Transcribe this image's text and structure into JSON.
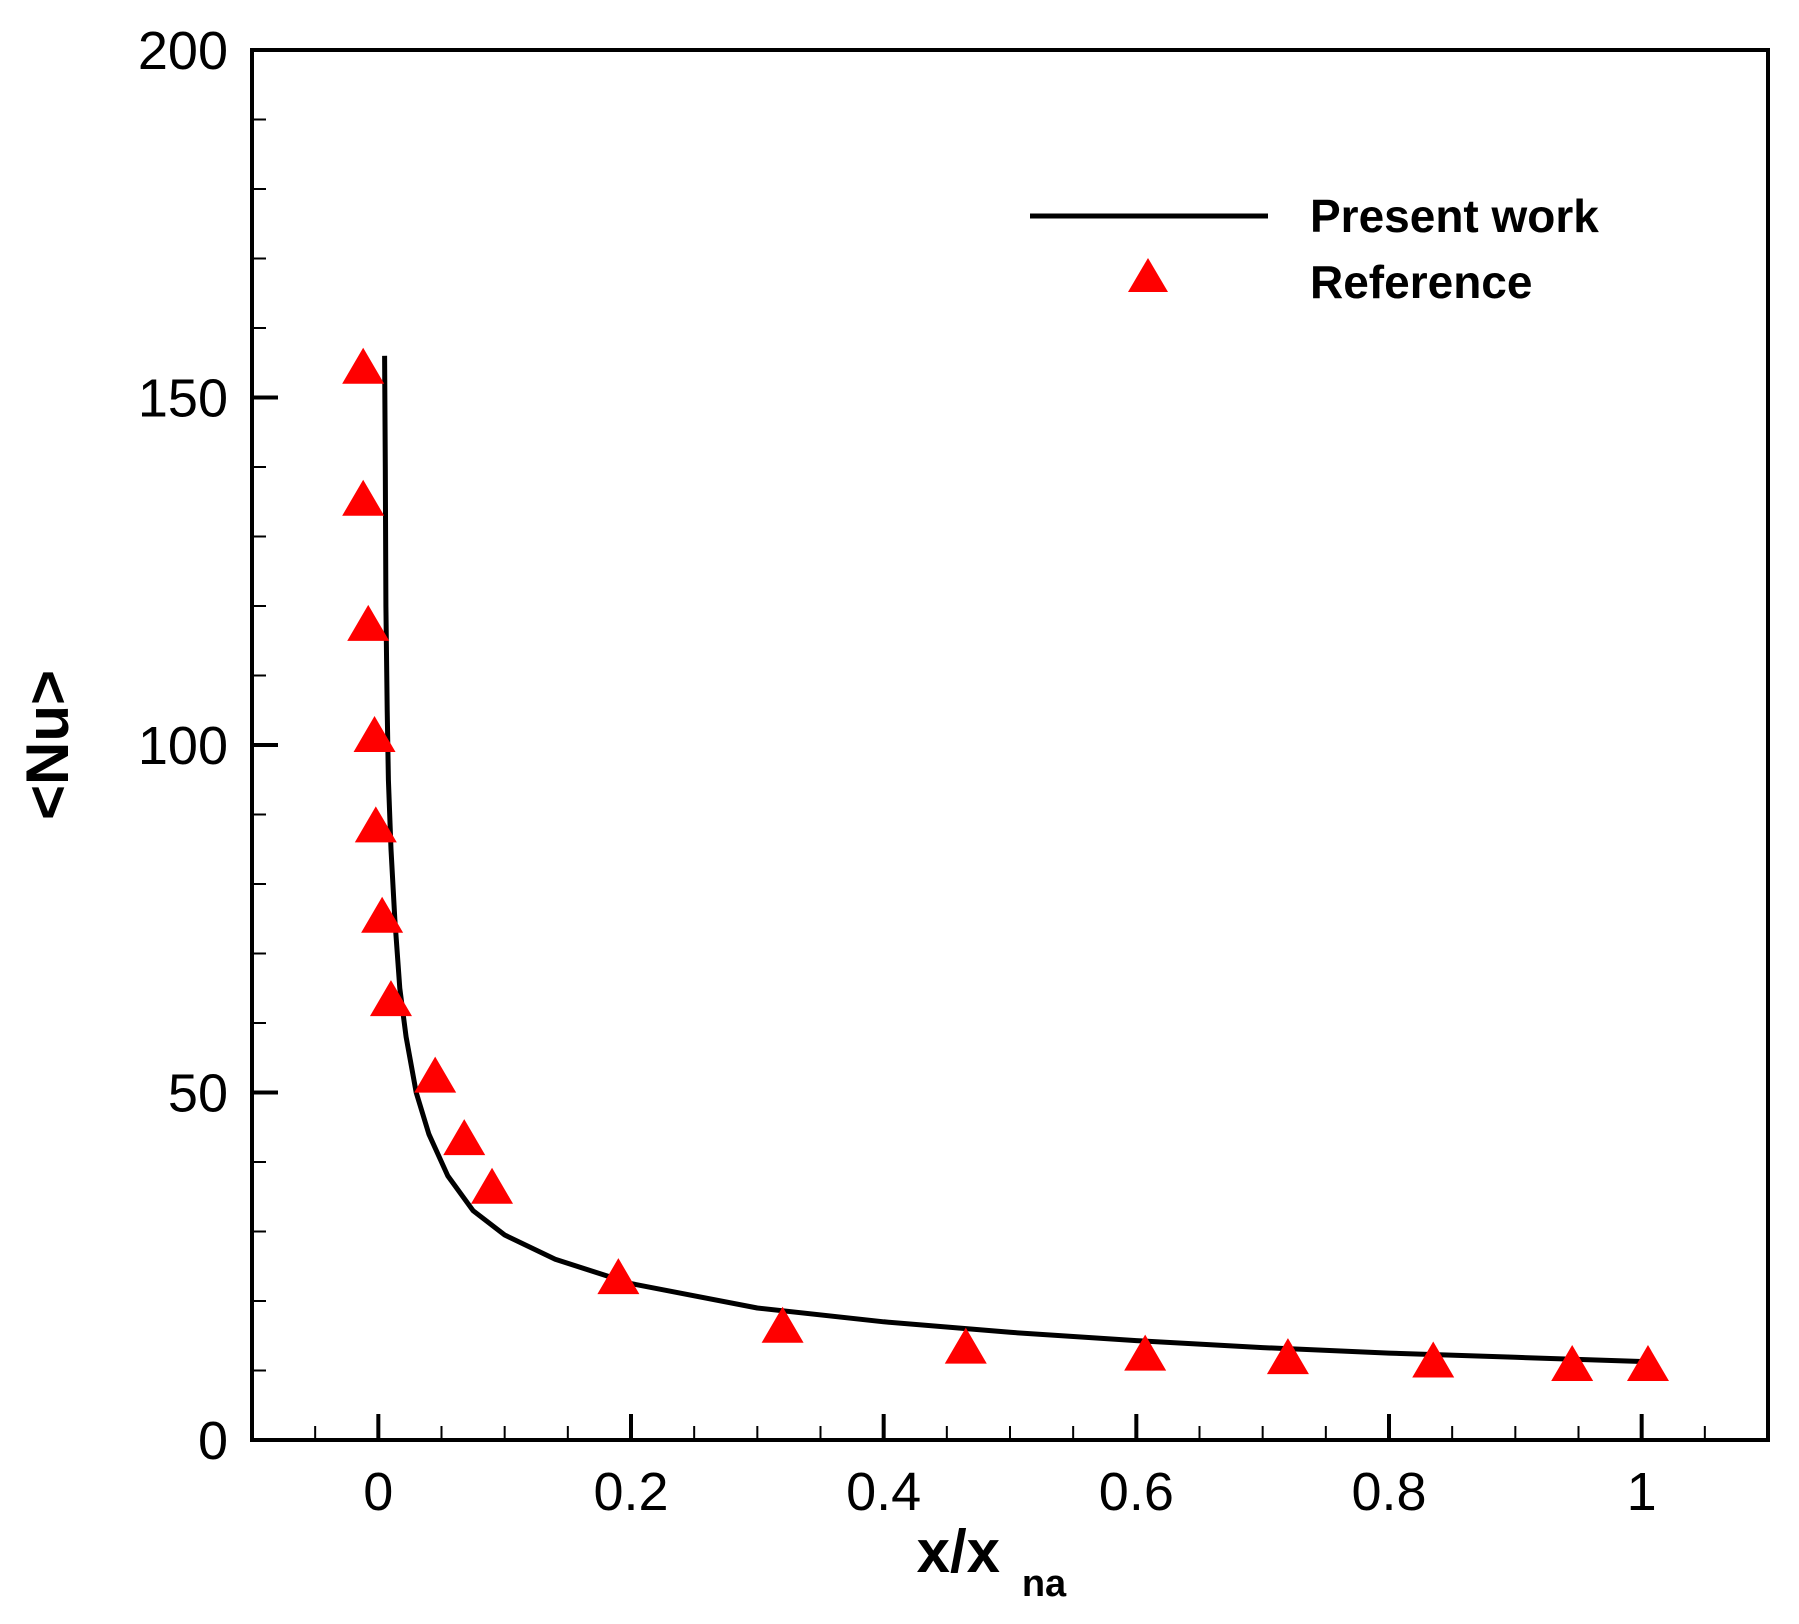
{
  "chart_data": {
    "type": "scatter",
    "title": "",
    "xlabel": "x/x",
    "xlabel_subscript": "na",
    "ylabel": "<Nu>",
    "xlim": [
      -0.1,
      1.1
    ],
    "ylim": [
      0,
      200
    ],
    "x_ticks": [
      0,
      0.2,
      0.4,
      0.6,
      0.8,
      1
    ],
    "x_tick_labels": [
      "0",
      "0.2",
      "0.4",
      "0.6",
      "0.8",
      "1"
    ],
    "y_ticks": [
      0,
      50,
      100,
      150,
      200
    ],
    "y_tick_labels": [
      "0",
      "50",
      "100",
      "150",
      "200"
    ],
    "grid": false,
    "legend_position": "top-right",
    "series": [
      {
        "name": "Present work",
        "kind": "line",
        "color": "#000000",
        "points": [
          [
            0.005,
            156
          ],
          [
            0.0055,
            140
          ],
          [
            0.006,
            120
          ],
          [
            0.007,
            105
          ],
          [
            0.008,
            95
          ],
          [
            0.01,
            85
          ],
          [
            0.013,
            75
          ],
          [
            0.017,
            65
          ],
          [
            0.022,
            58
          ],
          [
            0.03,
            50
          ],
          [
            0.04,
            44
          ],
          [
            0.055,
            38
          ],
          [
            0.075,
            33
          ],
          [
            0.1,
            29.5
          ],
          [
            0.14,
            26
          ],
          [
            0.2,
            22.5
          ],
          [
            0.3,
            19
          ],
          [
            0.4,
            17
          ],
          [
            0.5,
            15.5
          ],
          [
            0.6,
            14.3
          ],
          [
            0.7,
            13.3
          ],
          [
            0.8,
            12.5
          ],
          [
            0.9,
            11.9
          ],
          [
            1.0,
            11.3
          ]
        ]
      },
      {
        "name": "Reference",
        "kind": "markers",
        "marker": "triangle",
        "color": "#ff0000",
        "points": [
          [
            -0.012,
            154
          ],
          [
            -0.012,
            135
          ],
          [
            -0.008,
            117
          ],
          [
            -0.003,
            101
          ],
          [
            -0.002,
            88
          ],
          [
            0.003,
            75
          ],
          [
            0.01,
            63
          ],
          [
            0.045,
            52
          ],
          [
            0.068,
            43
          ],
          [
            0.09,
            36
          ],
          [
            0.19,
            23
          ],
          [
            0.32,
            16
          ],
          [
            0.465,
            13
          ],
          [
            0.607,
            12
          ],
          [
            0.72,
            11.5
          ],
          [
            0.835,
            11
          ],
          [
            0.945,
            10.5
          ],
          [
            1.005,
            10.5
          ]
        ]
      }
    ]
  }
}
